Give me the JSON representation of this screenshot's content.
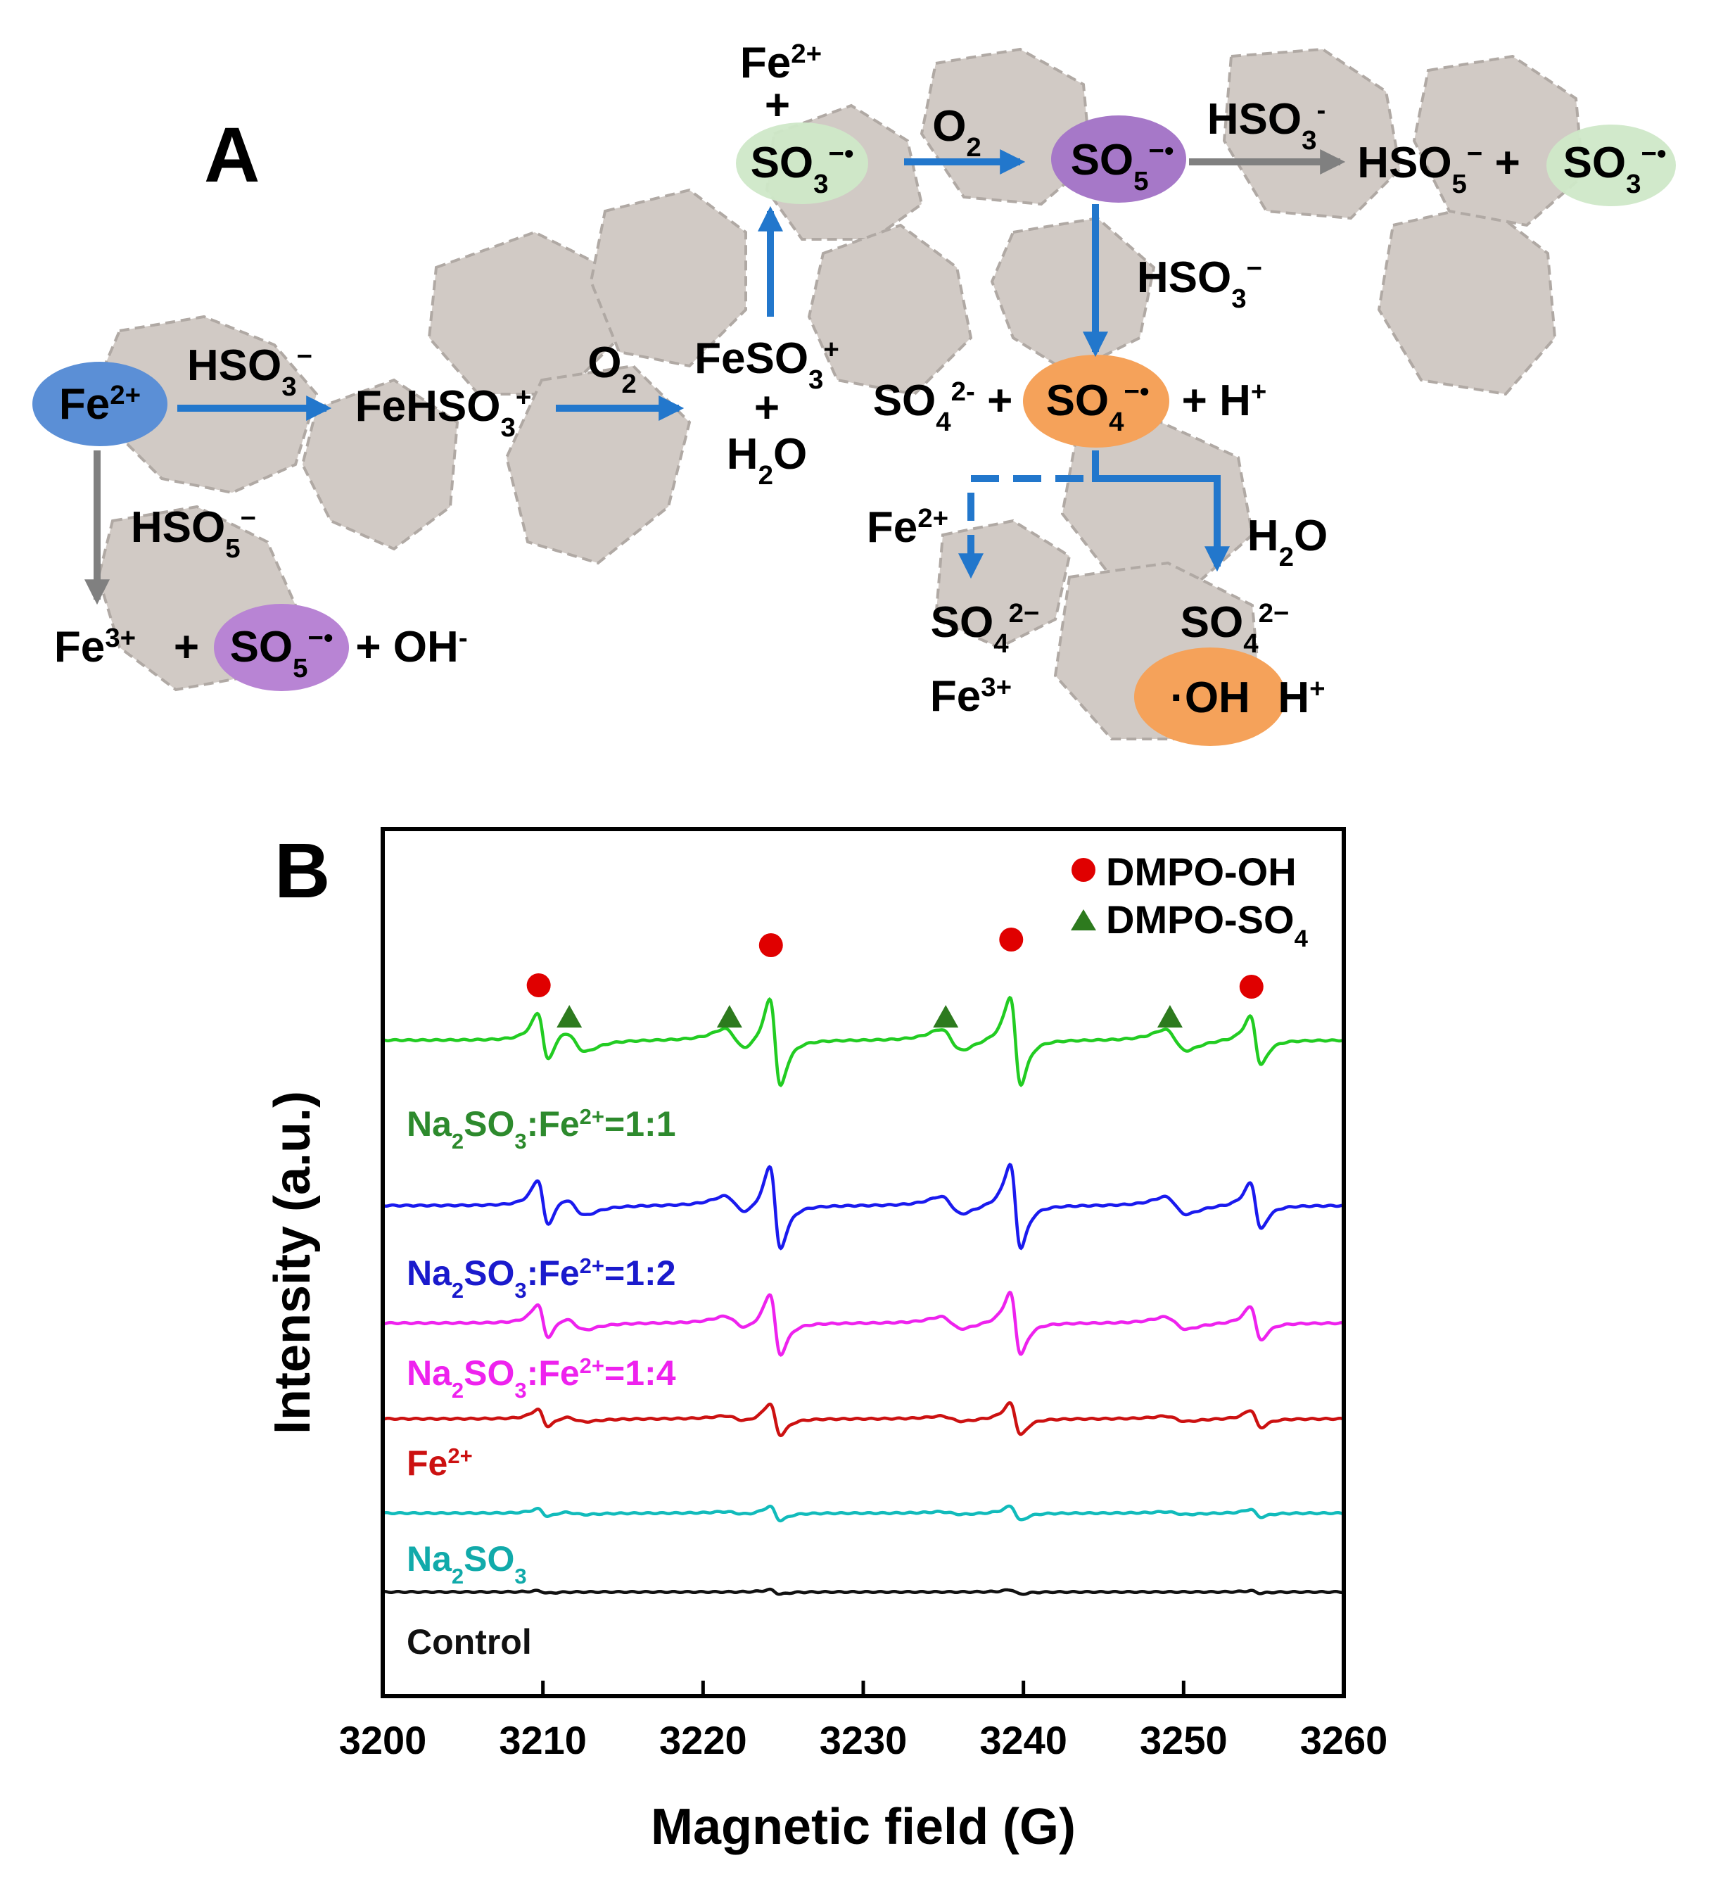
{
  "panel_a": {
    "panel_label": "A",
    "species": {
      "fe2_start": {
        "main": "Fe",
        "sup": "2+"
      },
      "hso3_a": {
        "main": "HSO",
        "sub": "3",
        "sup": "−"
      },
      "fehso3": {
        "main": "FeHSO",
        "sub": "3",
        "sup": "+"
      },
      "o2_a": {
        "main": "O",
        "sub": "2"
      },
      "feso3": {
        "main": "FeSO",
        "sub": "3",
        "sup": "+"
      },
      "plus_feso3": "+",
      "h2o_a": {
        "main": "H",
        "sub": "2",
        "tail": "O"
      },
      "fe2_top": {
        "main": "Fe",
        "sup": "2+"
      },
      "plus_top": "+",
      "so3_rad": {
        "main": "SO",
        "sub": "3",
        "sup": "−",
        "dot": "•"
      },
      "o2_b": {
        "main": "O",
        "sub": "2"
      },
      "so5_rad": {
        "main": "SO",
        "sub": "5",
        "sup": "−",
        "dot": "•"
      },
      "hso3_b": {
        "main": "HSO",
        "sub": "3",
        "sup": "-"
      },
      "hso5_right": {
        "main": "HSO",
        "sub": "5",
        "sup": "−",
        "tail": " +"
      },
      "so3_rad_right": {
        "main": "SO",
        "sub": "3",
        "sup": "−",
        "dot": "•"
      },
      "hso3_c": {
        "main": "HSO",
        "sub": "3",
        "sup": "−"
      },
      "so4_2_left": {
        "main": "SO",
        "sub": "4",
        "sup": "2-",
        "tail": " +"
      },
      "so4_rad": {
        "main": "SO",
        "sub": "4",
        "sup": "−",
        "dot": "•"
      },
      "plus_h": {
        "main": "+ H",
        "sup": "+"
      },
      "fe2_dashed": {
        "main": "Fe",
        "sup": "2+"
      },
      "h2o_b": {
        "main": "H",
        "sub": "2",
        "tail": "O"
      },
      "so4_2_a": {
        "main": "SO",
        "sub": "4",
        "sup": "2−"
      },
      "fe3_a": {
        "main": "Fe",
        "sup": "3+"
      },
      "so4_2_b": {
        "main": "SO",
        "sub": "4",
        "sup": "2−"
      },
      "oh_rad": {
        "main": "·OH"
      },
      "h_plus": {
        "main": "H",
        "sup": "+"
      },
      "hso5_left": {
        "main": "HSO",
        "sub": "5",
        "sup": "−"
      },
      "fe3_b": {
        "main": "Fe",
        "sup": "3+"
      },
      "plus_fe3": "+",
      "so5_rad_b": {
        "main": "SO",
        "sub": "5",
        "sup": "−",
        "dot": "•"
      },
      "oh_minus": {
        "main": "+ OH",
        "sup": "-"
      }
    }
  },
  "panel_b": {
    "panel_label": "B",
    "legend": {
      "dmpo_oh": {
        "main": "DMPO-OH"
      },
      "dmpo_so4": {
        "main": "DMPO-SO",
        "sub": "4"
      }
    },
    "series_labels": {
      "s1": [
        {
          "t": "Na"
        },
        {
          "t": "2",
          "s": "sub"
        },
        {
          "t": "SO"
        },
        {
          "t": "3",
          "s": "sub"
        },
        {
          "t": ":Fe"
        },
        {
          "t": "2+",
          "s": "sup"
        },
        {
          "t": "=1:1"
        }
      ],
      "s2": [
        {
          "t": "Na"
        },
        {
          "t": "2",
          "s": "sub"
        },
        {
          "t": "SO"
        },
        {
          "t": "3",
          "s": "sub"
        },
        {
          "t": ":Fe"
        },
        {
          "t": "2+",
          "s": "sup"
        },
        {
          "t": "=1:2"
        }
      ],
      "s3": [
        {
          "t": "Na"
        },
        {
          "t": "2",
          "s": "sub"
        },
        {
          "t": "SO"
        },
        {
          "t": "3",
          "s": "sub"
        },
        {
          "t": ":Fe"
        },
        {
          "t": "2+",
          "s": "sup"
        },
        {
          "t": "=1:4"
        }
      ],
      "s4": [
        {
          "t": "Fe"
        },
        {
          "t": "2+",
          "s": "sup"
        }
      ],
      "s5": [
        {
          "t": "Na"
        },
        {
          "t": "2",
          "s": "sub"
        },
        {
          "t": "SO"
        },
        {
          "t": "3",
          "s": "sub"
        }
      ],
      "s6": [
        {
          "t": "Control"
        }
      ]
    }
  },
  "chart_data": {
    "type": "line",
    "title": "",
    "xlabel": "Magnetic field (G)",
    "ylabel": "Intensity (a.u.)",
    "xlim": [
      3200,
      3260
    ],
    "xticks": [
      3200,
      3210,
      3220,
      3230,
      3240,
      3250,
      3260
    ],
    "y_ticks_shown": false,
    "legend_position": "top-right",
    "legend": [
      "DMPO-OH",
      "DMPO-SO4"
    ],
    "dmpo_oh_peaks": [
      3210,
      3224.5,
      3239.5,
      3254.5
    ],
    "dmpo_so4_peaks": [
      3212,
      3222,
      3235.5,
      3249.5
    ],
    "series": [
      {
        "name": "Na2SO3:Fe2+=1:1",
        "color": "#22cc22",
        "oh_amp": 1.0,
        "so4_amp": 0.24
      },
      {
        "name": "Na2SO3:Fe2+=1:2",
        "color": "#1a1aee",
        "oh_amp": 0.95,
        "so4_amp": 0.2
      },
      {
        "name": "Na2SO3:Fe2+=1:4",
        "color": "#ee22ee",
        "oh_amp": 0.7,
        "so4_amp": 0.14
      },
      {
        "name": "Fe2+",
        "color": "#cc1111",
        "oh_amp": 0.36,
        "so4_amp": 0.06
      },
      {
        "name": "Na2SO3",
        "color": "#11bbbb",
        "oh_amp": 0.16,
        "so4_amp": 0.03
      },
      {
        "name": "Control",
        "color": "#111111",
        "oh_amp": 0.05,
        "so4_amp": 0.0
      }
    ]
  }
}
